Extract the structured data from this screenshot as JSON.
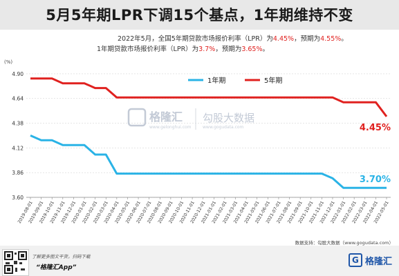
{
  "header": {
    "title": "5月5年期LPR下调15个基点，1年期维持不变"
  },
  "subtitle": {
    "line1_a": "2022年5月，全国5年期贷款市场报价利率（LPR）为",
    "line1_v1": "4.45%",
    "line1_b": "，预期为",
    "line1_v2": "4.55%",
    "line1_c": "。",
    "line2_a": "1年期贷款市场报价利率（LPR）为",
    "line2_v1": "3.7%",
    "line2_b": "，预期为",
    "line2_v2": "3.65%",
    "line2_c": "。"
  },
  "chart_data": {
    "type": "line",
    "unit_label": "(%)",
    "x": [
      "2019-08-01",
      "2019-09-01",
      "2019-10-01",
      "2019-11-01",
      "2019-12-01",
      "2020-01-01",
      "2020-02-01",
      "2020-03-01",
      "2020-04-01",
      "2020-05-01",
      "2020-06-01",
      "2020-07-01",
      "2020-08-01",
      "2020-09-01",
      "2020-10-01",
      "2020-11-01",
      "2020-12-01",
      "2021-01-01",
      "2021-02-01",
      "2021-03-01",
      "2021-04-01",
      "2021-05-01",
      "2021-06-01",
      "2021-07-01",
      "2021-08-01",
      "2021-09-01",
      "2021-10-01",
      "2021-11-01",
      "2021-12-01",
      "2022-01-01",
      "2022-02-01",
      "2022-03-01",
      "2022-04-01",
      "2022-05-01"
    ],
    "series": [
      {
        "name": "1年期",
        "color": "#2ab3e6",
        "values": [
          4.25,
          4.2,
          4.2,
          4.15,
          4.15,
          4.15,
          4.05,
          4.05,
          3.85,
          3.85,
          3.85,
          3.85,
          3.85,
          3.85,
          3.85,
          3.85,
          3.85,
          3.85,
          3.85,
          3.85,
          3.85,
          3.85,
          3.85,
          3.85,
          3.85,
          3.85,
          3.85,
          3.85,
          3.8,
          3.7,
          3.7,
          3.7,
          3.7,
          3.7
        ],
        "end_label": "3.70%"
      },
      {
        "name": "5年期",
        "color": "#e0211f",
        "values": [
          4.85,
          4.85,
          4.85,
          4.8,
          4.8,
          4.8,
          4.75,
          4.75,
          4.65,
          4.65,
          4.65,
          4.65,
          4.65,
          4.65,
          4.65,
          4.65,
          4.65,
          4.65,
          4.65,
          4.65,
          4.65,
          4.65,
          4.65,
          4.65,
          4.65,
          4.65,
          4.65,
          4.65,
          4.65,
          4.6,
          4.6,
          4.6,
          4.6,
          4.45
        ],
        "end_label": "4.45%"
      }
    ],
    "yticks": [
      3.6,
      3.86,
      4.12,
      4.38,
      4.64,
      4.9
    ],
    "ylim": [
      3.6,
      4.95
    ],
    "grid": true,
    "legend_position": "top-right"
  },
  "watermark": {
    "name": "格隆汇",
    "sub": "www.gelonghui.com",
    "name2": "勾股大数据",
    "sub2": "www.gogudata.com"
  },
  "source": "数据支持：勾股大数据（www.gogudata.com）",
  "footer": {
    "note": "了解更多图文干货，扫码下载",
    "app": "“格隆汇App”",
    "brand": "格隆汇",
    "brand_glyph": "G"
  }
}
